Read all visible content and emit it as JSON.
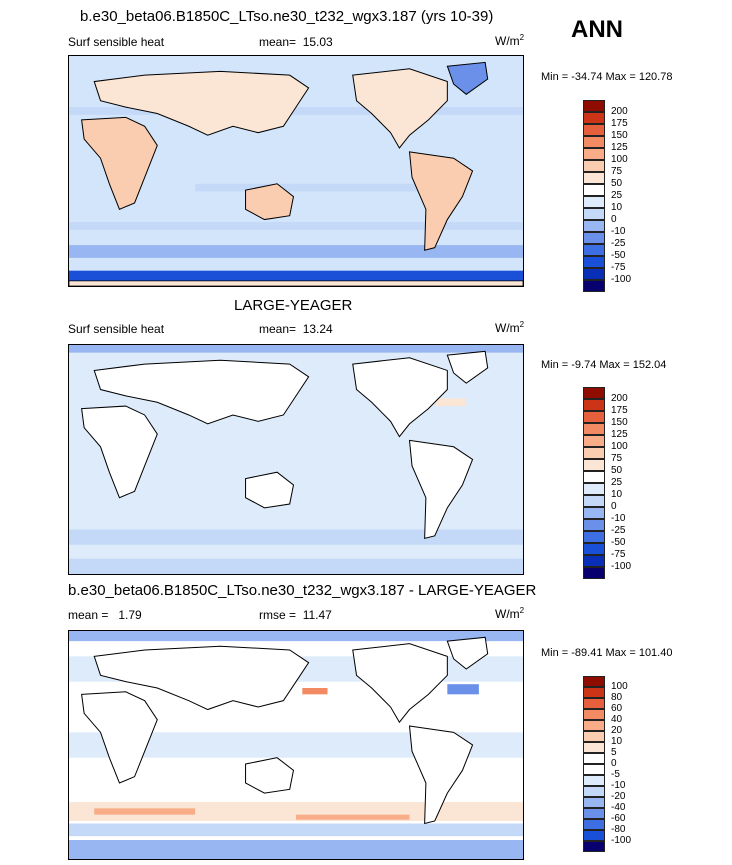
{
  "season": "ANN",
  "palette_main": [
    "#08006e",
    "#0a2fb7",
    "#1a4fd8",
    "#3d6fe3",
    "#6a90ea",
    "#98b6f1",
    "#c4d8f8",
    "#ddebfb",
    "#fbe6d6",
    "#fbcdb0",
    "#f8ad88",
    "#f28a63",
    "#e7603d",
    "#cc3418",
    "#8f0d00"
  ],
  "palette_diff": [
    "#08006e",
    "#0a2fb7",
    "#1a4fd8",
    "#3d6fe3",
    "#6a90ea",
    "#98b6f1",
    "#c4d8f8",
    "#ddebfb",
    "#ffffff",
    "#fbe6d6",
    "#fbcdb0",
    "#f8ad88",
    "#f28a63",
    "#e7603d",
    "#cc3418",
    "#8f0d00"
  ],
  "panels": [
    {
      "title": "b.e30_beta06.B1850C_LTso.ne30_t232_wgx3.187 (yrs 10-39)",
      "left_label": "Surf sensible heat",
      "stat_label": "mean=",
      "stat_value": "15.03",
      "units": "W/m",
      "units_exp": "2",
      "minmax": "Min = -34.74 Max = 120.78",
      "levels": [
        "200",
        "175",
        "150",
        "125",
        "100",
        "75",
        "50",
        "25",
        "10",
        "0",
        "-10",
        "-25",
        "-50",
        "-75",
        "-100"
      ]
    },
    {
      "title": "LARGE-YEAGER",
      "left_label": "Surf sensible heat",
      "stat_label": "mean=",
      "stat_value": "13.24",
      "units": "W/m",
      "units_exp": "2",
      "minmax": "Min =  -9.74 Max = 152.04",
      "levels": [
        "200",
        "175",
        "150",
        "125",
        "100",
        "75",
        "50",
        "25",
        "10",
        "0",
        "-10",
        "-25",
        "-50",
        "-75",
        "-100"
      ]
    },
    {
      "title": "b.e30_beta06.B1850C_LTso.ne30_t232_wgx3.187 - LARGE-YEAGER",
      "left_label": "mean =",
      "left_value": "1.79",
      "stat_label": "rmse =",
      "stat_value": "11.47",
      "units": "W/m",
      "units_exp": "2",
      "minmax": "Min = -89.41 Max = 101.40",
      "levels": [
        "100",
        "80",
        "60",
        "40",
        "20",
        "10",
        "5",
        "0",
        "-5",
        "-10",
        "-20",
        "-40",
        "-60",
        "-80",
        "-100"
      ]
    }
  ]
}
